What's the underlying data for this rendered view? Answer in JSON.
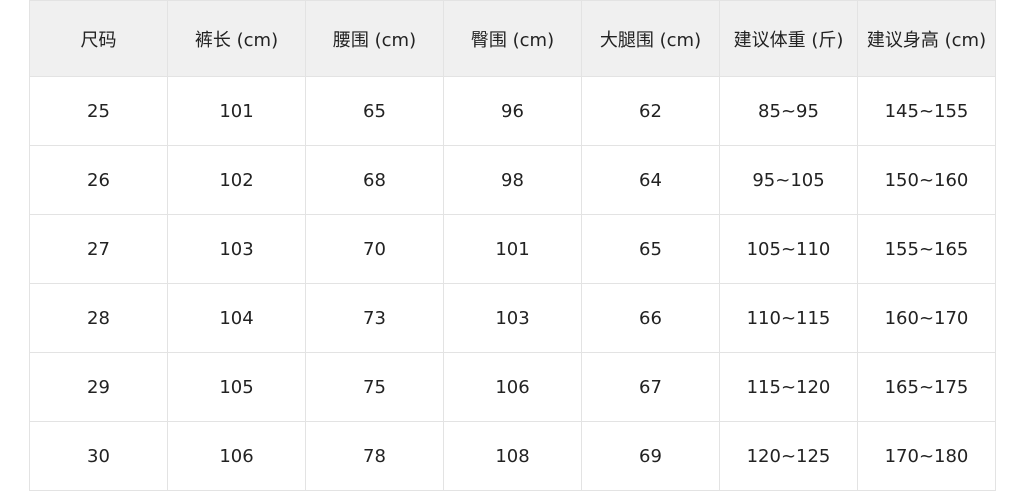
{
  "table": {
    "headers": [
      "尺码",
      "裤长 (cm)",
      "腰围 (cm)",
      "臀围 (cm)",
      "大腿围 (cm)",
      "建议体重 (斤)",
      "建议身高 (cm)"
    ],
    "rows": [
      [
        "25",
        "101",
        "65",
        "96",
        "62",
        "85~95",
        "145~155"
      ],
      [
        "26",
        "102",
        "68",
        "98",
        "64",
        "95~105",
        "150~160"
      ],
      [
        "27",
        "103",
        "70",
        "101",
        "65",
        "105~110",
        "155~165"
      ],
      [
        "28",
        "104",
        "73",
        "103",
        "66",
        "110~115",
        "160~170"
      ],
      [
        "29",
        "105",
        "75",
        "106",
        "67",
        "115~120",
        "165~175"
      ],
      [
        "30",
        "106",
        "78",
        "108",
        "69",
        "120~125",
        "170~180"
      ]
    ]
  }
}
